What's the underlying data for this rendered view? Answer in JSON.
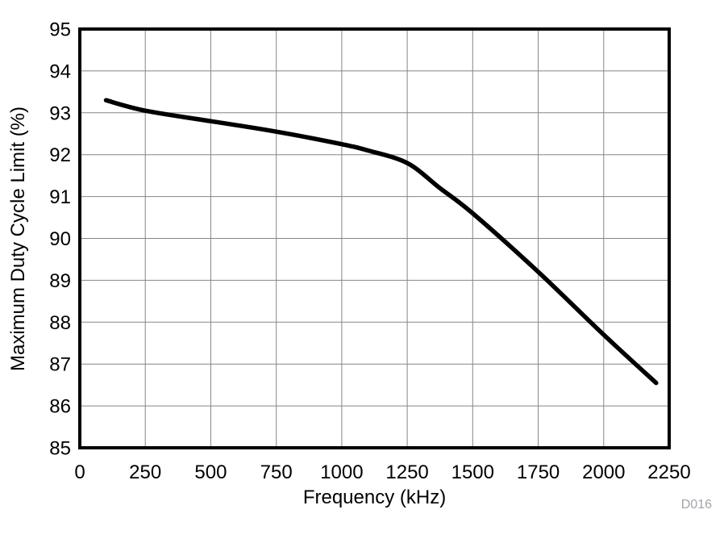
{
  "chart_data": {
    "type": "line",
    "title": "",
    "xlabel": "Frequency (kHz)",
    "ylabel": "Maximum Duty Cycle Limit (%)",
    "watermark": "D016",
    "xlim": [
      0,
      2250
    ],
    "ylim": [
      85,
      95
    ],
    "x_ticks": [
      0,
      250,
      500,
      750,
      1000,
      1250,
      1500,
      1750,
      2000,
      2250
    ],
    "y_ticks": [
      85,
      86,
      87,
      88,
      89,
      90,
      91,
      92,
      93,
      94,
      95
    ],
    "grid": true,
    "legend_position": "none",
    "colors": {
      "line": "#000000",
      "grid": "#858585",
      "frame": "#000000",
      "tick_text": "#000000",
      "watermark": "#a0a4a9"
    },
    "series": [
      {
        "name": "Maximum Duty Cycle Limit",
        "x": [
          100,
          250,
          500,
          750,
          1000,
          1100,
          1250,
          1375,
          1500,
          1750,
          2000,
          2200
        ],
        "y": [
          93.3,
          93.05,
          92.8,
          92.55,
          92.25,
          92.1,
          91.8,
          91.2,
          90.6,
          89.2,
          87.7,
          86.55
        ]
      }
    ]
  }
}
